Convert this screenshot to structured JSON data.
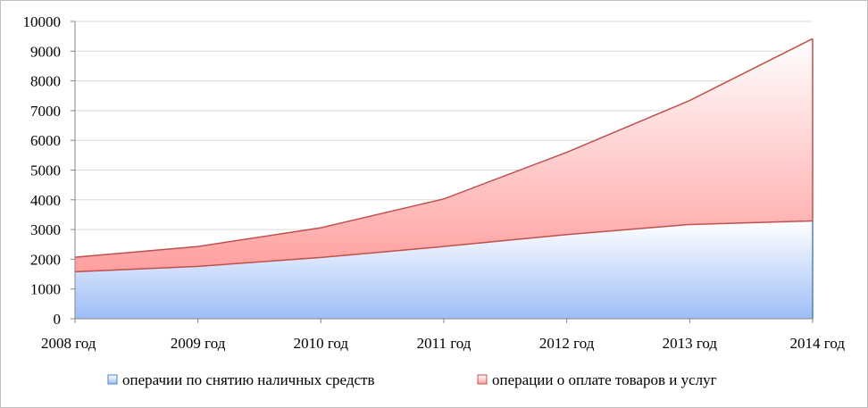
{
  "chart_data": {
    "type": "area",
    "stacked": true,
    "categories": [
      "2008 год",
      "2009 год",
      "2010 год",
      "2011 год",
      "2012 год",
      "2013 год",
      "2014 год"
    ],
    "series": [
      {
        "name": "операчии по снятию наличных средств",
        "values": [
          1580,
          1760,
          2060,
          2430,
          2830,
          3170,
          3290
        ],
        "color": "#4f81bd"
      },
      {
        "name": "операции о оплате товаров и услуг",
        "values": [
          490,
          670,
          1000,
          1600,
          2770,
          4170,
          6130
        ],
        "color": "#c0504d"
      }
    ],
    "ylim": [
      0,
      10000
    ],
    "yticks": [
      "0",
      "1000",
      "2000",
      "3000",
      "4000",
      "5000",
      "6000",
      "7000",
      "8000",
      "9000",
      "10000"
    ],
    "grid": true,
    "legend_position": "bottom"
  }
}
